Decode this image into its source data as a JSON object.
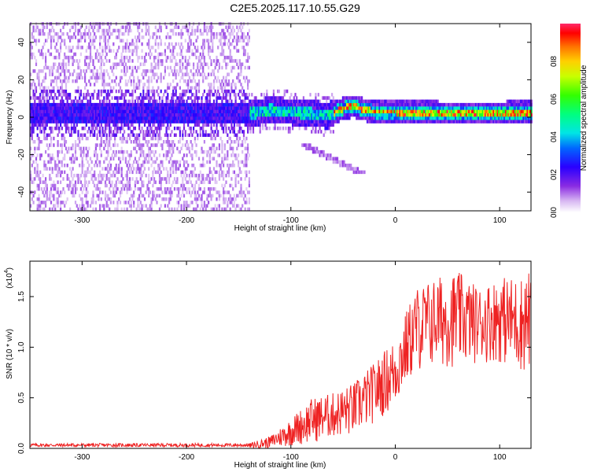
{
  "title": "C2E5.2025.117.10.55.G29",
  "chart_data": [
    {
      "type": "heatmap",
      "title": "C2E5.2025.117.10.55.G29",
      "xlabel": "Height of straight line (km)",
      "ylabel": "Frequency (Hz)",
      "xlim": [
        -350,
        130
      ],
      "ylim": [
        -50,
        50
      ],
      "xticks": [
        -300,
        -200,
        -100,
        0,
        100
      ],
      "yticks": [
        -40,
        -20,
        0,
        20,
        40
      ],
      "colorbar": {
        "label": "Normalized spectral amplitude",
        "range": [
          0.0,
          1.0
        ],
        "ticks": [
          "0.0",
          "0.2",
          "0.4",
          "0.6",
          "0.8"
        ]
      },
      "ridge": {
        "description_points_x": [
          -140,
          -120,
          -100,
          -80,
          -65,
          -50,
          -40,
          -30,
          -20,
          0,
          50,
          100,
          130
        ],
        "description_points_freq": [
          1,
          3,
          2,
          1,
          0,
          4,
          5,
          3,
          2,
          2,
          1.5,
          1.5,
          2
        ]
      }
    },
    {
      "type": "line",
      "xlabel": "Height of straight line (km)",
      "ylabel": "SNR (10 * v/v)",
      "yscale_label": "(x10",
      "yscale_exp": "4",
      "xlim": [
        -350,
        130
      ],
      "ylim": [
        0,
        1.85
      ],
      "xticks": [
        -300,
        -200,
        -100,
        0,
        100
      ],
      "yticks": [
        "0.0",
        "0.5",
        "1.0",
        "1.5"
      ],
      "series": [
        {
          "name": "SNR",
          "color": "#ee2222",
          "envelope_x": [
            -350,
            -140,
            -120,
            -100,
            -80,
            -60,
            -40,
            -20,
            0,
            10,
            20,
            40,
            60,
            80,
            100,
            120,
            130
          ],
          "envelope_low": [
            0.0,
            0.0,
            0.0,
            0.02,
            0.05,
            0.1,
            0.12,
            0.25,
            0.4,
            0.6,
            0.75,
            0.8,
            0.8,
            0.85,
            0.85,
            0.75,
            0.75
          ],
          "envelope_high": [
            0.05,
            0.05,
            0.12,
            0.3,
            0.5,
            0.55,
            0.65,
            0.85,
            1.1,
            1.35,
            1.6,
            1.7,
            1.75,
            1.6,
            1.7,
            1.7,
            1.8
          ]
        }
      ]
    }
  ]
}
